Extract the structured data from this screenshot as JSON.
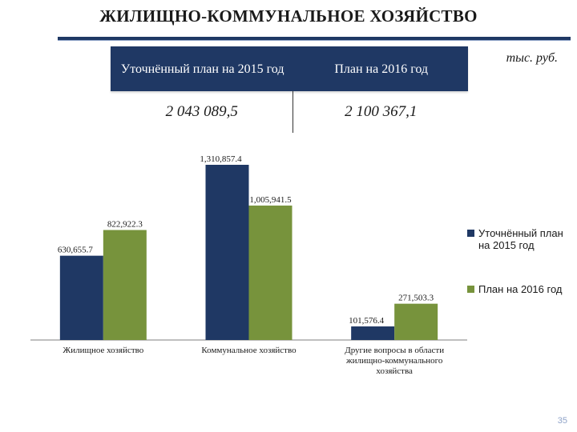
{
  "header": {
    "title": "ЖИЛИЩНО-КОММУНАЛЬНОЕ ХОЗЯЙСТВО",
    "unit": "тыс. руб."
  },
  "summary": {
    "col1_label": "Уточнённый план на 2015 год",
    "col2_label": "План на 2016 год",
    "col1_value": "2 043 089,5",
    "col2_value": "2 100 367,1"
  },
  "page_number": "35",
  "colors": {
    "series_2015": "#1f3864",
    "series_2016": "#77933c",
    "header_bg": "#1f3864"
  },
  "chart_data": {
    "type": "bar",
    "categories": [
      "Жилищное хозяйство",
      "Коммунальное хозяйство",
      "Другие вопросы в области жилищно-коммунального хозяйства"
    ],
    "series": [
      {
        "name": "Уточнённый план на 2015 год",
        "values": [
          630655.7,
          1310857.4,
          101576.4
        ],
        "labels": [
          "630,655.7",
          "1,310,857.4",
          "101,576.4"
        ],
        "color": "#1f3864"
      },
      {
        "name": "План на 2016 год",
        "values": [
          822922.3,
          1005941.5,
          271503.3
        ],
        "labels": [
          "822,922.3",
          "1,005,941.5",
          "271,503.3"
        ],
        "color": "#77933c"
      }
    ],
    "ylim": [
      0,
      1500000
    ],
    "grid": false,
    "legend_position": "right"
  }
}
